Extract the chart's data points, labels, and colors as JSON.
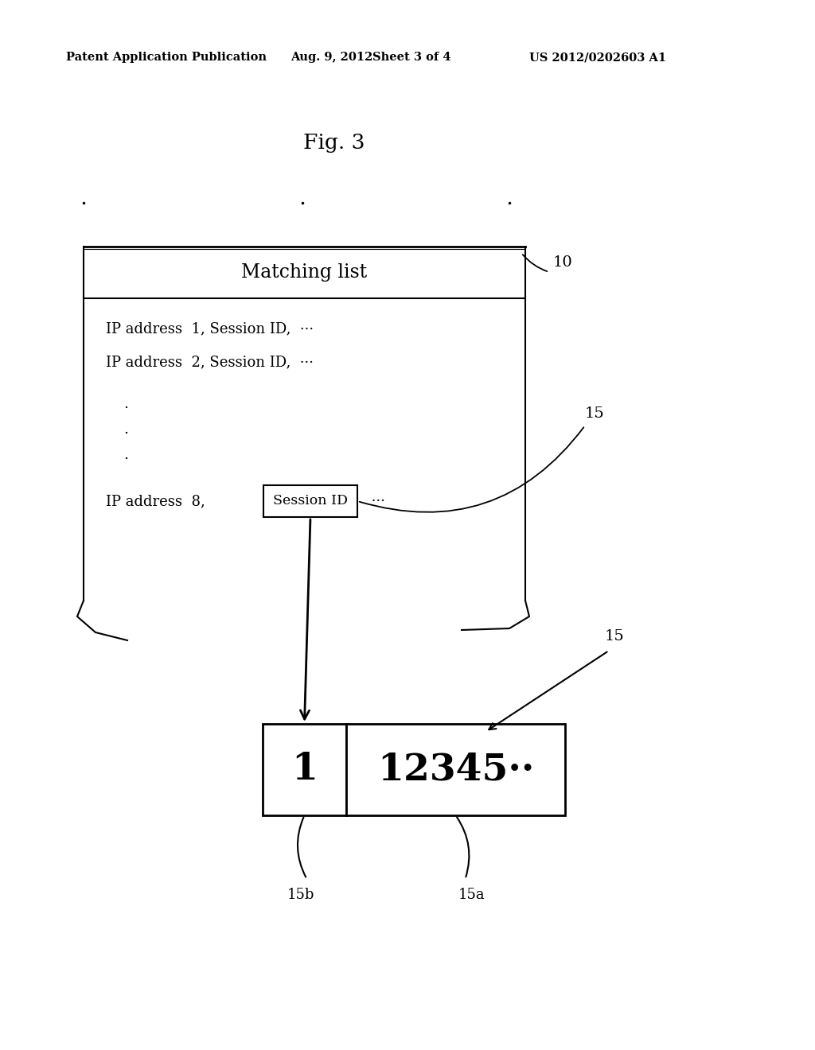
{
  "bg_color": "#ffffff",
  "header_text": "Patent Application Publication",
  "header_date": "Aug. 9, 2012",
  "header_sheet": "Sheet 3 of 4",
  "header_patent": "US 2012/0202603 A1",
  "fig_label": "Fig. 3",
  "box10_label": "10",
  "box15_label_upper": "15",
  "box15_label_lower": "15",
  "box15b_label": "15b",
  "box15a_label": "15a",
  "matching_list_title": "Matching list",
  "row1": "IP address  1, Session ID,  ···",
  "row2": "IP address  2, Session ID,  ···",
  "row8_prefix": "IP address  8,",
  "row8_boxed": "Session ID",
  "row8_suffix": " ···",
  "session_box_content": "1",
  "session_id_content": "12345··"
}
